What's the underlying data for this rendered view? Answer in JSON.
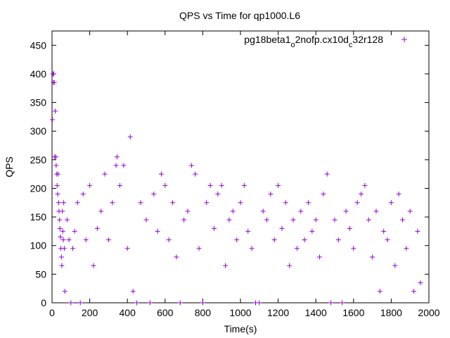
{
  "chart_data": {
    "type": "scatter",
    "title": "QPS vs Time for qp1000.L6",
    "xlabel": "Time(s)",
    "ylabel": "QPS",
    "xlim": [
      0,
      2000
    ],
    "ylim": [
      0,
      475
    ],
    "xticks": [
      "0",
      "200",
      "400",
      "600",
      "800",
      "1000",
      "1200",
      "1400",
      "1600",
      "1800",
      "2000"
    ],
    "yticks": [
      "0",
      "50",
      "100",
      "150",
      "200",
      "250",
      "300",
      "350",
      "400",
      "450"
    ],
    "grid": false,
    "legend_position": "top-right",
    "series": [
      {
        "name": "pg18beta1_o2nofp.cx10d_c32r128",
        "name_parts": [
          "pg18beta1",
          "o",
          "2nofp.cx10d",
          "c",
          "32r128"
        ],
        "color": "#9400d3",
        "marker": "+",
        "points": [
          [
            2,
            320
          ],
          [
            5,
            400
          ],
          [
            7,
            385
          ],
          [
            9,
            400
          ],
          [
            12,
            385
          ],
          [
            14,
            255
          ],
          [
            17,
            335
          ],
          [
            20,
            255
          ],
          [
            22,
            240
          ],
          [
            25,
            225
          ],
          [
            27,
            205
          ],
          [
            30,
            190
          ],
          [
            32,
            225
          ],
          [
            35,
            175
          ],
          [
            37,
            160
          ],
          [
            40,
            145
          ],
          [
            42,
            130
          ],
          [
            45,
            115
          ],
          [
            47,
            95
          ],
          [
            50,
            80
          ],
          [
            52,
            65
          ],
          [
            55,
            160
          ],
          [
            57,
            125
          ],
          [
            60,
            110
          ],
          [
            62,
            175
          ],
          [
            65,
            95
          ],
          [
            68,
            20
          ],
          [
            80,
            145
          ],
          [
            90,
            110
          ],
          [
            100,
            0
          ],
          [
            110,
            95
          ],
          [
            120,
            125
          ],
          [
            135,
            175
          ],
          [
            150,
            0
          ],
          [
            165,
            190
          ],
          [
            180,
            110
          ],
          [
            200,
            205
          ],
          [
            220,
            65
          ],
          [
            240,
            130
          ],
          [
            260,
            160
          ],
          [
            280,
            225
          ],
          [
            300,
            110
          ],
          [
            320,
            175
          ],
          [
            340,
            240
          ],
          [
            345,
            255
          ],
          [
            360,
            205
          ],
          [
            380,
            240
          ],
          [
            400,
            95
          ],
          [
            415,
            290
          ],
          [
            430,
            20
          ],
          [
            450,
            0
          ],
          [
            470,
            175
          ],
          [
            500,
            145
          ],
          [
            520,
            0
          ],
          [
            540,
            190
          ],
          [
            560,
            125
          ],
          [
            580,
            225
          ],
          [
            600,
            205
          ],
          [
            620,
            110
          ],
          [
            640,
            175
          ],
          [
            660,
            80
          ],
          [
            680,
            0
          ],
          [
            700,
            145
          ],
          [
            720,
            160
          ],
          [
            740,
            240
          ],
          [
            760,
            225
          ],
          [
            780,
            95
          ],
          [
            800,
            0
          ],
          [
            820,
            175
          ],
          [
            840,
            205
          ],
          [
            860,
            130
          ],
          [
            880,
            190
          ],
          [
            900,
            205
          ],
          [
            920,
            65
          ],
          [
            940,
            145
          ],
          [
            960,
            160
          ],
          [
            980,
            110
          ],
          [
            1000,
            175
          ],
          [
            1020,
            205
          ],
          [
            1040,
            125
          ],
          [
            1060,
            95
          ],
          [
            1080,
            0
          ],
          [
            1100,
            0
          ],
          [
            1120,
            160
          ],
          [
            1140,
            145
          ],
          [
            1160,
            190
          ],
          [
            1180,
            110
          ],
          [
            1200,
            205
          ],
          [
            1220,
            130
          ],
          [
            1240,
            175
          ],
          [
            1260,
            65
          ],
          [
            1280,
            145
          ],
          [
            1300,
            95
          ],
          [
            1320,
            160
          ],
          [
            1340,
            110
          ],
          [
            1360,
            175
          ],
          [
            1380,
            125
          ],
          [
            1400,
            145
          ],
          [
            1420,
            80
          ],
          [
            1440,
            190
          ],
          [
            1460,
            225
          ],
          [
            1480,
            0
          ],
          [
            1500,
            145
          ],
          [
            1520,
            110
          ],
          [
            1540,
            0
          ],
          [
            1560,
            160
          ],
          [
            1580,
            130
          ],
          [
            1600,
            95
          ],
          [
            1620,
            175
          ],
          [
            1640,
            190
          ],
          [
            1660,
            205
          ],
          [
            1680,
            145
          ],
          [
            1700,
            80
          ],
          [
            1720,
            160
          ],
          [
            1740,
            20
          ],
          [
            1760,
            125
          ],
          [
            1780,
            110
          ],
          [
            1800,
            175
          ],
          [
            1820,
            65
          ],
          [
            1840,
            190
          ],
          [
            1860,
            145
          ],
          [
            1880,
            95
          ],
          [
            1900,
            160
          ],
          [
            1920,
            20
          ],
          [
            1940,
            125
          ],
          [
            1955,
            35
          ]
        ]
      }
    ]
  }
}
